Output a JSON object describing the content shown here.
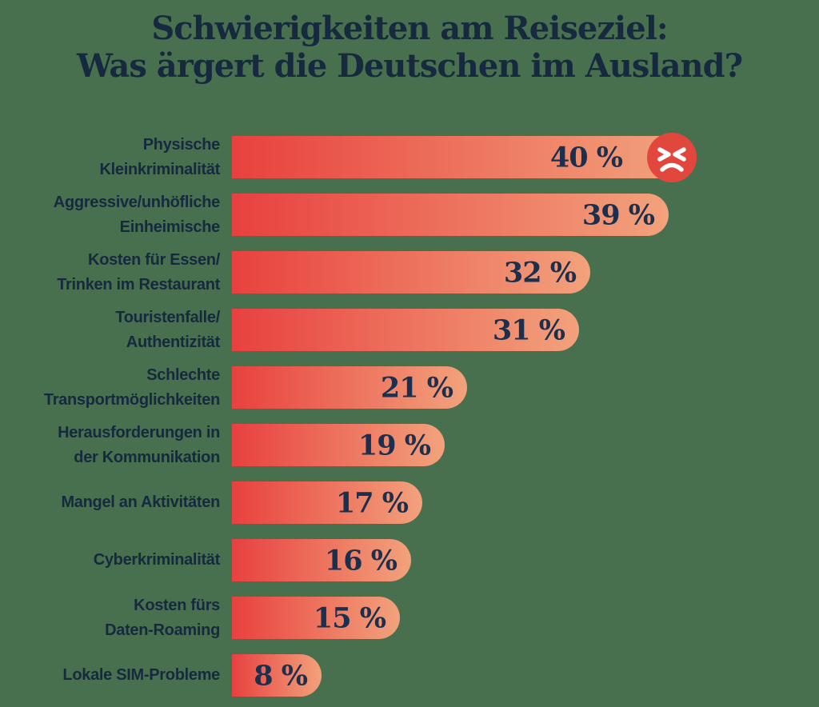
{
  "title": {
    "line1": "Schwierigkeiten am Reiseziel:",
    "line2": "Was ärgert die Deutschen im Ausland?"
  },
  "chart_data": {
    "type": "bar",
    "orientation": "horizontal",
    "title": "Schwierigkeiten am Reiseziel: Was ärgert die Deutschen im Ausland?",
    "categories": [
      "Physische Kleinkriminalität",
      "Aggressive/unhöfliche Einheimische",
      "Kosten für Essen/Trinken im Restaurant",
      "Touristenfalle/Authentizität",
      "Schlechte Transportmöglichkeiten",
      "Herausforderungen in der Kommunikation",
      "Mangel an Aktivitäten",
      "Cyberkriminalität",
      "Kosten fürs Daten-Roaming",
      "Lokale SIM-Probleme"
    ],
    "category_lines": [
      [
        "Physische",
        "Kleinkriminalität"
      ],
      [
        "Aggressive/unhöfliche",
        "Einheimische"
      ],
      [
        "Kosten für Essen/",
        "Trinken im Restaurant"
      ],
      [
        "Touristenfalle/",
        "Authentizität"
      ],
      [
        "Schlechte",
        "Transportmöglichkeiten"
      ],
      [
        "Herausforderungen in",
        "der Kommunikation"
      ],
      [
        "Mangel an Aktivitäten"
      ],
      [
        "Cyberkriminalität"
      ],
      [
        "Kosten fürs",
        "Daten-Roaming"
      ],
      [
        "Lokale SIM-Probleme"
      ]
    ],
    "values": [
      40,
      39,
      32,
      31,
      21,
      19,
      17,
      16,
      15,
      8
    ],
    "value_labels": [
      "40 %",
      "39 %",
      "32 %",
      "31 %",
      "21 %",
      "19 %",
      "17 %",
      "16 %",
      "15 %",
      "8 %"
    ],
    "xlim": [
      0,
      40
    ],
    "grid": false,
    "legend": false,
    "annotation": {
      "icon": "angry-face-emoji",
      "on_category": "Physische Kleinkriminalität"
    }
  },
  "colors": {
    "background": "#48704E",
    "bar_gradient_start": "#E8413E",
    "bar_gradient_end": "#F2A27C",
    "text_navy": "#16293F",
    "value_navy": "#1B2F4E",
    "emoji_red": "#E2473D",
    "emoji_face": "#FFFFFF"
  }
}
